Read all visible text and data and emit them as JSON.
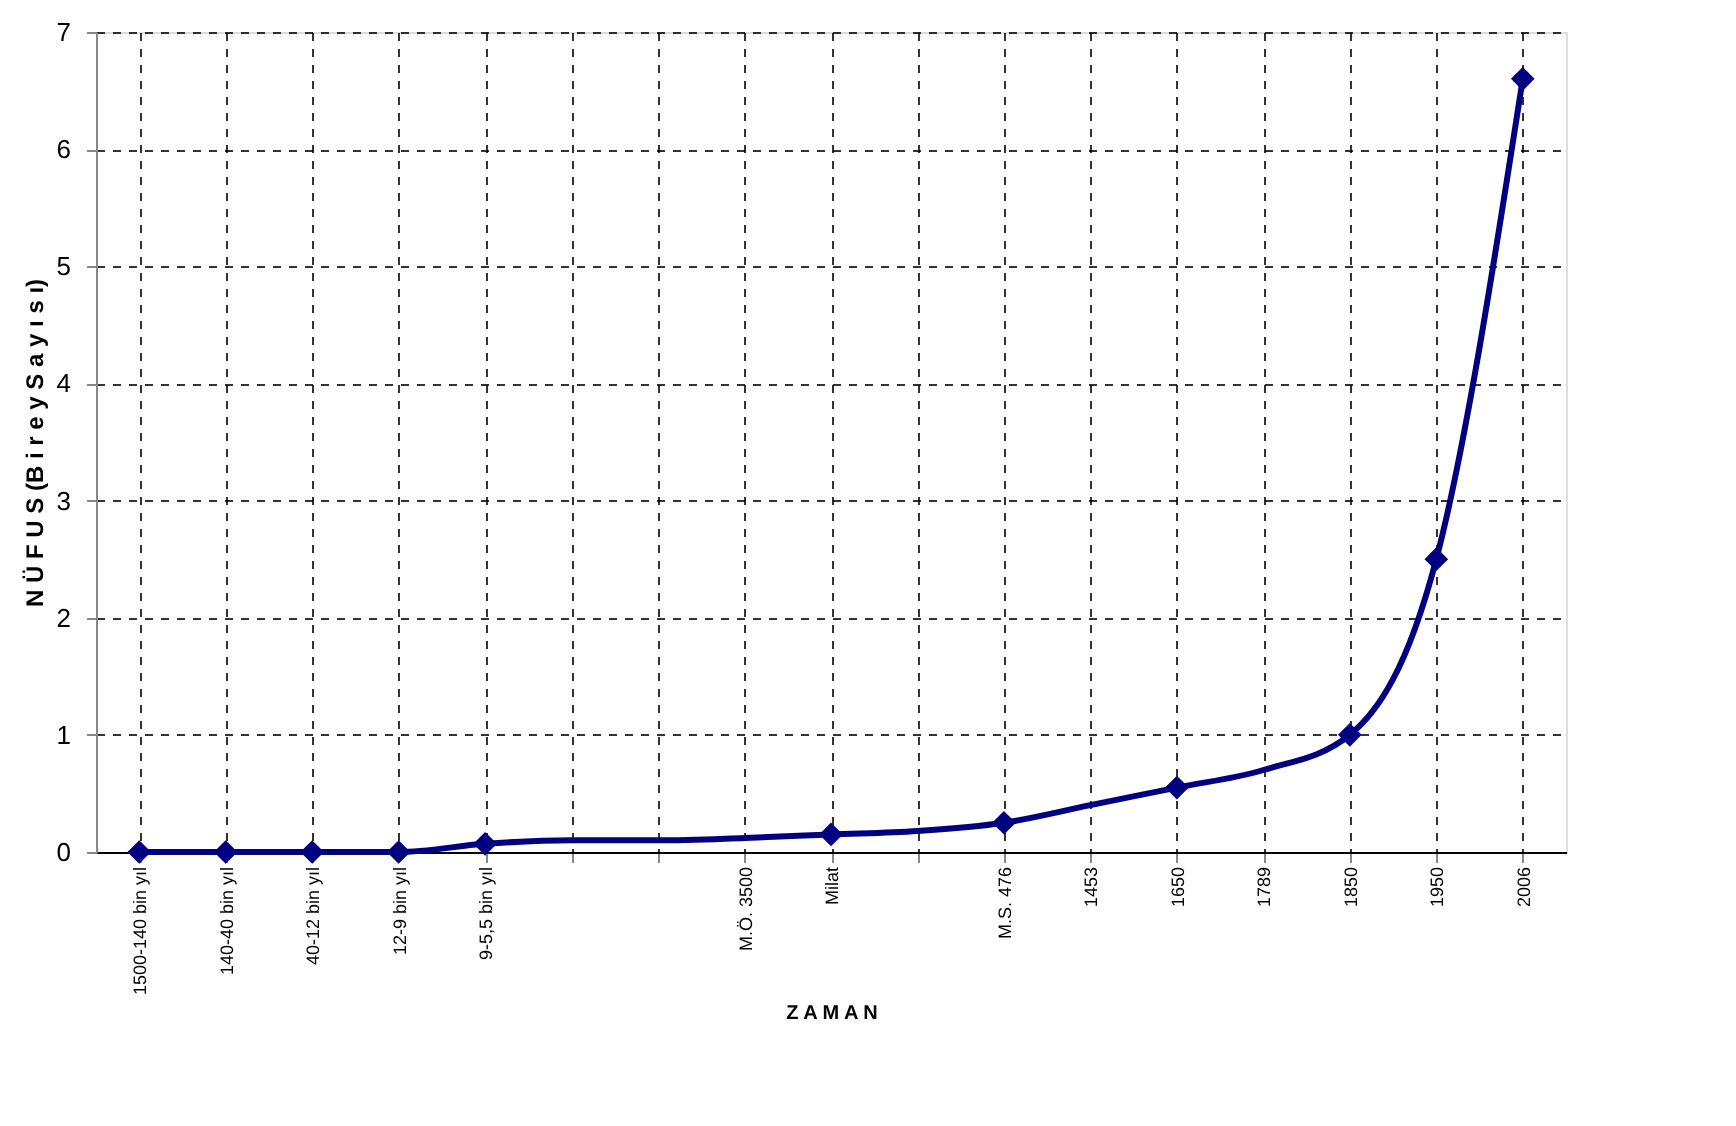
{
  "chart_data": {
    "type": "line",
    "xlabel": "Z A M A N",
    "ylabel": "N Ü F U S  (B i r e y  S a y ı s ı)",
    "categories": [
      "1500-140 bin yıl",
      "140-40 bin yıl",
      "40-12 bin yıl",
      "12-9 bin yıl",
      "9-5,5 bin yıl",
      null,
      null,
      "M.Ö. 3500",
      "Milat",
      null,
      "M.S. 476",
      "1453",
      "1650",
      "1789",
      "1850",
      "1950",
      "2006"
    ],
    "series": [
      {
        "color": "#000080",
        "marker": "none",
        "values": [
          0,
          0,
          0,
          0,
          0.07,
          0.1,
          0.1,
          0.12,
          0.15,
          0.18,
          0.25,
          0.4,
          0.55,
          0.7,
          1.0,
          2.5,
          6.6
        ]
      },
      {
        "type": "scatter",
        "color": "#000080",
        "marker": "diamond",
        "values": [
          0,
          0,
          0,
          0,
          0.07,
          null,
          null,
          null,
          0.15,
          null,
          0.25,
          null,
          0.55,
          null,
          1.0,
          2.5,
          6.6
        ]
      }
    ],
    "ylim": [
      0,
      7
    ],
    "yticks": [
      0,
      1,
      2,
      3,
      4,
      5,
      6,
      7
    ],
    "grid": true
  }
}
